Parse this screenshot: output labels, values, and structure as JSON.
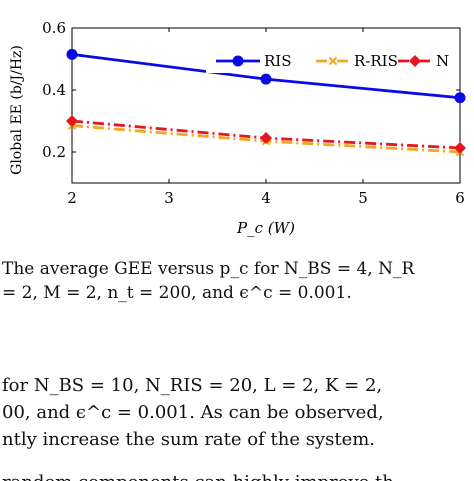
{
  "chart_data": {
    "type": "line",
    "x": [
      2,
      4,
      6
    ],
    "xlim": [
      2,
      6
    ],
    "ylim": [
      0.1,
      0.6
    ],
    "xticks": [
      "2",
      "3",
      "4",
      "5",
      "6"
    ],
    "yticks": [
      "0.2",
      "0.4",
      "0.6"
    ],
    "xlabel": "P_c (W)",
    "ylabel": "Global EE (b/J/Hz)",
    "legend_position": "top-right",
    "grid": false,
    "series": [
      {
        "name": "RIS",
        "values": [
          0.515,
          0.435,
          0.375
        ],
        "color": "#0a0ae6",
        "style": "solid",
        "marker": "circle"
      },
      {
        "name": "R-RIS",
        "values": [
          0.285,
          0.235,
          0.2
        ],
        "color": "#f0a81e",
        "style": "dashdot",
        "marker": "x"
      },
      {
        "name": "N",
        "values": [
          0.3,
          0.245,
          0.213
        ],
        "color": "#e8141e",
        "style": "dashdot",
        "marker": "diamond"
      }
    ]
  },
  "caption": {
    "line1": "The average GEE versus p_c for N_BS = 4, N_R",
    "line2": "= 2, M = 2, n_t = 200, and ϵ^c = 0.001."
  },
  "body_text": {
    "line1": "for N_BS = 10, N_RIS = 20, L = 2, K = 2,",
    "line2": "00, and ϵ^c = 0.001. As can be observed,",
    "line3": "ntly increase the sum rate of the system.",
    "line4": "random components can highly improve th"
  }
}
